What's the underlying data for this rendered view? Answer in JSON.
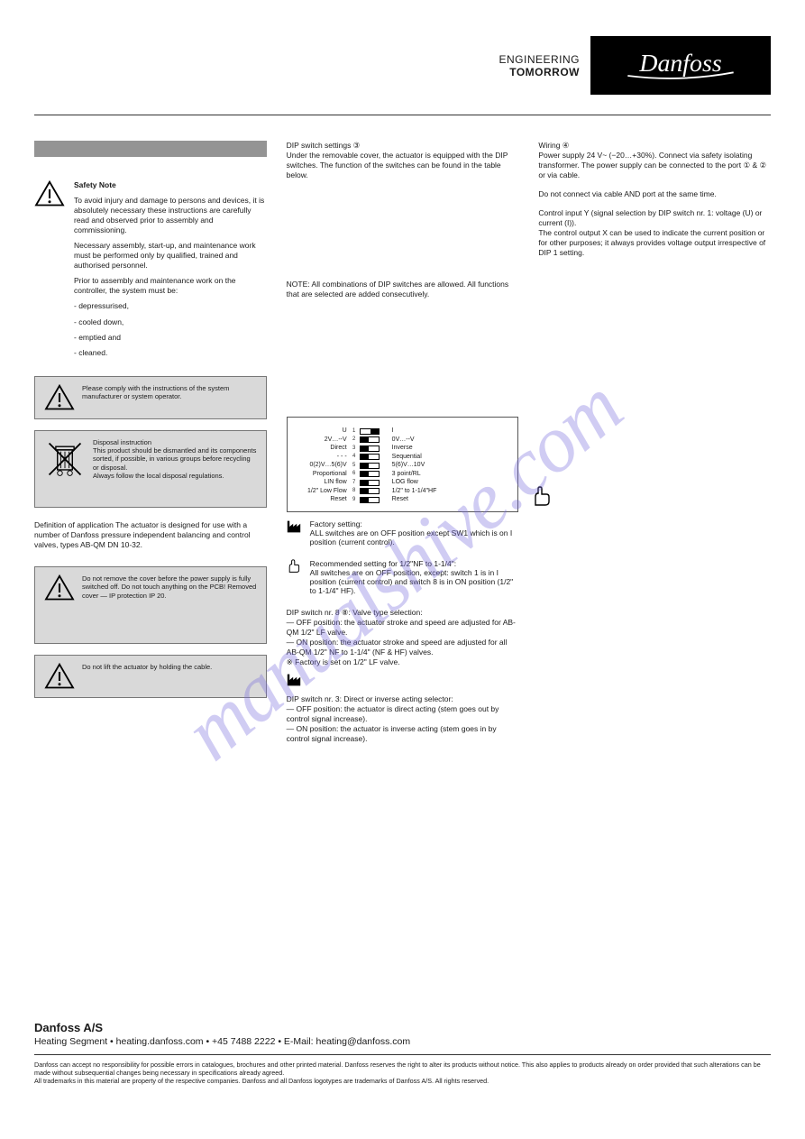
{
  "brand": {
    "tagline_l1": "ENGINEERING",
    "tagline_l2": "TOMORROW",
    "logo_text": "Danfoss",
    "logo_bg": "#000000",
    "logo_fg": "#ffffff"
  },
  "watermark": "manualshive.com",
  "col1": {
    "warn1_lines": [
      "Safety Note",
      "To avoid injury and damage to persons and devices, it is absolutely necessary these instructions are carefully read and observed prior to assembly and commissioning.",
      "Necessary assembly, start-up, and maintenance work must be performed only by qualified, trained and authorised personnel.",
      "Prior to assembly and maintenance work on the controller, the system must be:",
      "- depressurised,",
      "- cooled down,",
      "- emptied and",
      "- cleaned."
    ],
    "box_warn1": "Please comply with the instructions of the system manufacturer or system operator.",
    "box_bin": "Disposal instruction\nThis product should be dismantled and its components sorted, if possible, in various groups before recycling or disposal.\nAlways follow the local disposal regulations.",
    "p_after_bin": "Definition of application\nThe actuator is designed for use with a number of Danfoss pressure independent balancing and control valves, types AB-QM DN 10-32.",
    "box_warn2": "Do not remove the cover before the power supply is fully switched off.\nDo not touch anything on the PCB! Removed cover — IP protection IP 20.",
    "box_warn3": "Do not lift the actuator by holding the cable."
  },
  "col2": {
    "p_top": "DIP switch settings ③\nUnder the removable cover, the actuator is equipped with the DIP switches. The function of the switches can be found in the table below.",
    "p_before_dip": "NOTE: All combinations of DIP switches are allowed. All functions that are selected are added consecutively.",
    "dip": {
      "left_labels": [
        "U",
        "2V…--V",
        "Direct",
        "- - -",
        "0(2)V…5(6)V",
        "Proportional",
        "LIN flow",
        "1/2\" Low Flow",
        "Reset"
      ],
      "right_labels": [
        "I",
        "0V…--V",
        "Inverse",
        "Sequential",
        "5(6)V…10V",
        "3 point/RL",
        "LOG flow",
        "1/2\" to 1-1/4\"HF",
        "Reset"
      ],
      "nums": [
        "1",
        "2",
        "3",
        "4",
        "5",
        "6",
        "7",
        "8",
        "9"
      ],
      "states": [
        "on",
        "off",
        "off",
        "off",
        "off",
        "off",
        "off",
        "off",
        "off"
      ],
      "border_color": "#555555",
      "font_size": 7
    },
    "factory_icon_note": "Factory setting:\nALL switches are on OFF position except SW1 which is on I position (current control).",
    "hand_icon_note": "Recommended setting for 1/2\"NF to 1-1/4\":\nAll switches are on OFF position, except: switch 1 is in I position (current control) and switch 8 is in ON position (1/2\" to 1-1/4\" HF).",
    "p_sw8": "DIP switch nr. 8 ⑧: Valve type selection:\n— OFF position: the actuator stroke and speed are adjusted for AB-QM 1/2\" LF valve.\n— ON position: the actuator stroke and speed are adjusted for all AB-QM 1/2\" NF to 1-1/4\" (NF & HF) valves.\n※ Factory is set on 1/2\" LF valve.",
    "p_sw3": "DIP switch nr. 3: Direct or inverse acting selector:\n— OFF position: the actuator is direct acting (stem goes out by control signal increase).\n— ON position: the actuator is inverse acting (stem goes in by control signal increase)."
  },
  "col3": {
    "p1": "Wiring ④\nPower supply 24 V~ (−20…+30%). Connect via safety isolating transformer. The power supply can be connected to the port ① & ② or via cable.",
    "p2": "Do not connect via cable AND port at the same time.",
    "p3": "Control input Y (signal selection by DIP switch nr. 1: voltage (U) or current (I)).\nThe control output X can be used to indicate the current position or for other purposes; it always provides voltage output irrespective of DIP 1 setting."
  },
  "footer": {
    "company": "Danfoss A/S",
    "segment": "Heating Segment • heating.danfoss.com • +45 7488 2222 • E-Mail: heating@danfoss.com",
    "legal": "Danfoss can accept no responsibility for possible errors in catalogues, brochures and other printed material. Danfoss reserves the right to alter its products without notice. This also applies to products already on order provided that such alterations can be made without subsequential changes being necessary in specifications already agreed.\nAll trademarks in this material are property of the respective companies. Danfoss and all Danfoss logotypes are trademarks of Danfoss A/S. All rights reserved."
  },
  "colors": {
    "page_bg": "#ffffff",
    "text": "#1a1a1a",
    "grey_bar": "#949494",
    "box_bg": "#d9d9d9",
    "box_border": "#777777",
    "hr": "#333333",
    "watermark": "rgba(120,110,220,0.35)"
  }
}
